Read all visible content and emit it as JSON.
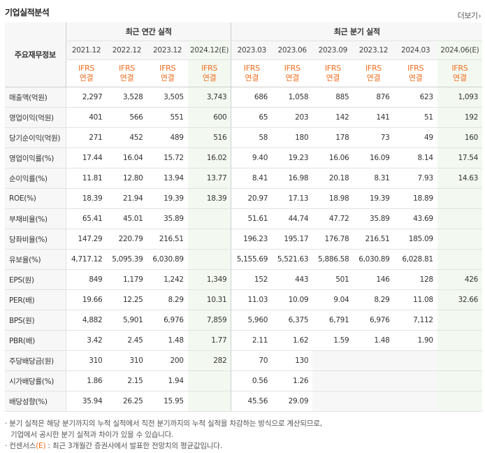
{
  "title": "기업실적분석",
  "more_label": "더보기",
  "more_icon": "chevron-right-icon",
  "header": {
    "row_head": "주요재무정보",
    "annual_group": "최근 연간 실적",
    "quarter_group": "최근 분기 실적",
    "annual_periods": [
      "2021.12",
      "2022.12",
      "2023.12",
      "2024.12(E)"
    ],
    "quarter_periods": [
      "2023.03",
      "2023.06",
      "2023.09",
      "2023.12",
      "2024.03",
      "2024.06(E)"
    ],
    "basis_line1": "IFRS",
    "basis_line2": "연결"
  },
  "colors": {
    "accent": "#f06d1f",
    "estimate_bg": "#f3f9f0",
    "header_bg": "#f7f7f7"
  },
  "rows": [
    {
      "label": "매출액(억원)",
      "values": [
        "2,297",
        "3,528",
        "3,505",
        "3,743",
        "686",
        "1,058",
        "885",
        "876",
        "623",
        "1,093"
      ],
      "group": true
    },
    {
      "label": "영업이익(억원)",
      "values": [
        "401",
        "566",
        "551",
        "600",
        "65",
        "203",
        "142",
        "141",
        "51",
        "192"
      ]
    },
    {
      "label": "당기순이익(억원)",
      "values": [
        "271",
        "452",
        "489",
        "516",
        "58",
        "180",
        "178",
        "73",
        "49",
        "160"
      ]
    },
    {
      "label": "영업이익률(%)",
      "values": [
        "17.44",
        "16.04",
        "15.72",
        "16.02",
        "9.40",
        "19.23",
        "16.06",
        "16.09",
        "8.14",
        "17.54"
      ],
      "group": true
    },
    {
      "label": "순이익률(%)",
      "values": [
        "11.81",
        "12.80",
        "13.94",
        "13.77",
        "8.41",
        "16.98",
        "20.18",
        "8.31",
        "7.93",
        "14.63"
      ]
    },
    {
      "label": "ROE(%)",
      "values": [
        "18.39",
        "21.94",
        "19.39",
        "18.39",
        "20.97",
        "17.13",
        "18.98",
        "19.39",
        "18.89",
        ""
      ]
    },
    {
      "label": "부채비율(%)",
      "values": [
        "65.41",
        "45.01",
        "35.89",
        "",
        "51.61",
        "44.74",
        "47.72",
        "35.89",
        "43.69",
        ""
      ],
      "group": true
    },
    {
      "label": "당좌비율(%)",
      "values": [
        "147.29",
        "220.79",
        "216.51",
        "",
        "196.23",
        "195.17",
        "176.78",
        "216.51",
        "185.09",
        ""
      ]
    },
    {
      "label": "유보율(%)",
      "values": [
        "4,717.12",
        "5,095.39",
        "6,030.89",
        "",
        "5,155.69",
        "5,521.63",
        "5,886.58",
        "6,030.89",
        "6,028.81",
        ""
      ]
    },
    {
      "label": "EPS(원)",
      "values": [
        "849",
        "1,179",
        "1,242",
        "1,349",
        "152",
        "443",
        "501",
        "146",
        "128",
        "426"
      ],
      "group": true
    },
    {
      "label": "PER(배)",
      "values": [
        "19.66",
        "12.25",
        "8.29",
        "10.31",
        "11.03",
        "10.09",
        "9.04",
        "8.29",
        "11.08",
        "32.66"
      ]
    },
    {
      "label": "BPS(원)",
      "values": [
        "4,882",
        "5,901",
        "6,976",
        "7,859",
        "5,960",
        "6,375",
        "6,791",
        "6,976",
        "7,112",
        ""
      ]
    },
    {
      "label": "PBR(배)",
      "values": [
        "3.42",
        "2.45",
        "1.48",
        "1.77",
        "2.11",
        "1.62",
        "1.59",
        "1.48",
        "1.90",
        ""
      ]
    },
    {
      "label": "주당배당금(원)",
      "values": [
        "310",
        "310",
        "200",
        "282",
        "70",
        "130",
        "",
        "",
        "",
        ""
      ],
      "group": true
    },
    {
      "label": "시가배당률(%)",
      "values": [
        "1.86",
        "2.15",
        "1.94",
        "",
        "0.56",
        "1.26",
        "",
        "",
        "",
        ""
      ]
    },
    {
      "label": "배당성향(%)",
      "values": [
        "35.94",
        "26.25",
        "15.95",
        "",
        "45.56",
        "29.09",
        "",
        "",
        "",
        ""
      ]
    }
  ],
  "notes": {
    "line1": "분기 실적은 해당 분기까지의 누적 실적에서 직전 분기까지의 누적 실적을 차감하는 방식으로 계산되므로,",
    "line2": "기업에서 공시한 분기 실적과 차이가 있을 수 있습니다.",
    "line3_prefix": "컨센서스",
    "line3_mark": "(E)",
    "line3_suffix": ": 최근 3개월간 증권사에서 발표한 전망치의 평균값입니다."
  }
}
